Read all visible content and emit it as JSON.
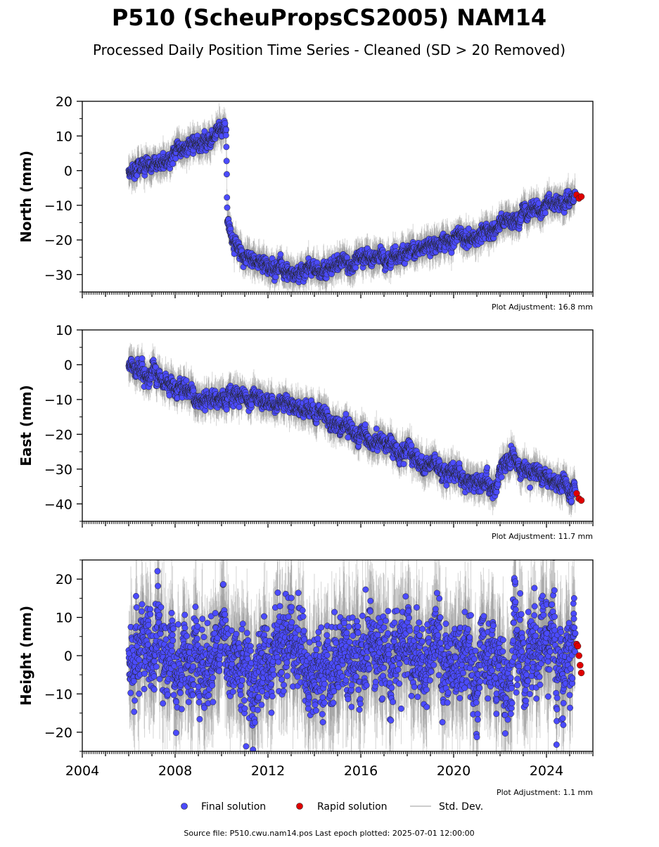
{
  "header": {
    "title": "P510 (ScheuPropsCS2005) NAM14",
    "subtitle": "Processed Daily Position Time Series - Cleaned (SD > 20 Removed)"
  },
  "legend": {
    "final": "Final solution",
    "rapid": "Rapid solution",
    "std": "Std. Dev."
  },
  "footer": {
    "source": "Source file: P510.cwu.nam14.pos  Last epoch plotted: 2025-07-01 12:00:00"
  },
  "colors": {
    "final": "#4b4bff",
    "rapid": "#e00000",
    "std": "#888888",
    "edge": "#222222"
  },
  "chart_data": [
    {
      "type": "scatter",
      "ylabel": "North (mm)",
      "ylim": [
        -35,
        20
      ],
      "yticks": [
        20,
        10,
        0,
        -10,
        -20,
        -30
      ],
      "xlim": [
        2004,
        2026
      ],
      "adjustment": "Plot Adjustment: 16.8 mm",
      "series": [
        {
          "name": "Final solution",
          "trend": [
            [
              2006.0,
              -0.5
            ],
            [
              2007.0,
              1.5
            ],
            [
              2008.0,
              4.0
            ],
            [
              2009.0,
              7.5
            ],
            [
              2010.2,
              11.0
            ],
            [
              2010.25,
              -14.0
            ],
            [
              2010.5,
              -21.0
            ],
            [
              2011.0,
              -25.0
            ],
            [
              2012.0,
              -27.5
            ],
            [
              2013.0,
              -29.5
            ],
            [
              2014.0,
              -28.0
            ],
            [
              2015.0,
              -27.0
            ],
            [
              2016.0,
              -26.0
            ],
            [
              2017.0,
              -25.0
            ],
            [
              2018.0,
              -23.5
            ],
            [
              2019.0,
              -22.0
            ],
            [
              2020.0,
              -20.0
            ],
            [
              2021.0,
              -18.5
            ],
            [
              2022.0,
              -16.0
            ],
            [
              2023.0,
              -12.5
            ],
            [
              2024.0,
              -10.0
            ],
            [
              2025.3,
              -8.0
            ]
          ],
          "scatter": 1.2
        },
        {
          "name": "Rapid solution",
          "x": [
            2025.3,
            2025.4,
            2025.5
          ],
          "y": [
            -7.0,
            -8.0,
            -7.5
          ]
        }
      ]
    },
    {
      "type": "scatter",
      "ylabel": "East (mm)",
      "ylim": [
        -45,
        10
      ],
      "yticks": [
        10,
        0,
        -10,
        -20,
        -30,
        -40
      ],
      "xlim": [
        2004,
        2026
      ],
      "adjustment": "Plot Adjustment: 11.7 mm",
      "series": [
        {
          "name": "Final solution",
          "trend": [
            [
              2006.0,
              0.0
            ],
            [
              2007.0,
              -3.0
            ],
            [
              2008.0,
              -6.0
            ],
            [
              2009.0,
              -9.0
            ],
            [
              2010.2,
              -12.0
            ],
            [
              2010.3,
              -8.5
            ],
            [
              2011.0,
              -9.0
            ],
            [
              2012.0,
              -10.5
            ],
            [
              2013.0,
              -12.0
            ],
            [
              2014.0,
              -14.5
            ],
            [
              2015.0,
              -17.0
            ],
            [
              2016.0,
              -20.0
            ],
            [
              2017.0,
              -23.0
            ],
            [
              2018.0,
              -26.0
            ],
            [
              2019.0,
              -29.0
            ],
            [
              2020.0,
              -31.5
            ],
            [
              2021.0,
              -34.0
            ],
            [
              2021.8,
              -35.5
            ],
            [
              2022.1,
              -28.5
            ],
            [
              2022.5,
              -27.0
            ],
            [
              2023.0,
              -29.5
            ],
            [
              2024.0,
              -32.5
            ],
            [
              2025.3,
              -38.0
            ]
          ],
          "scatter": 1.3
        },
        {
          "name": "Rapid solution",
          "x": [
            2025.3,
            2025.4,
            2025.5
          ],
          "y": [
            -37.0,
            -38.5,
            -39.0
          ]
        }
      ]
    },
    {
      "type": "scatter",
      "ylabel": "Height (mm)",
      "ylim": [
        -25,
        25
      ],
      "yticks": [
        20,
        10,
        0,
        -10,
        -20
      ],
      "xlim": [
        2004,
        2026
      ],
      "xticks": [
        2004,
        2008,
        2012,
        2016,
        2020,
        2024
      ],
      "adjustment": "Plot Adjustment: 1.1 mm",
      "series": [
        {
          "name": "Final solution",
          "trend": [
            [
              2006.0,
              0.0
            ],
            [
              2026.0,
              0.0
            ]
          ],
          "scatter": 6.0
        },
        {
          "name": "Rapid solution",
          "x": [
            2025.3,
            2025.35,
            2025.4,
            2025.45,
            2025.5
          ],
          "y": [
            3.0,
            2.5,
            0.0,
            -2.5,
            -4.5
          ]
        }
      ]
    }
  ]
}
